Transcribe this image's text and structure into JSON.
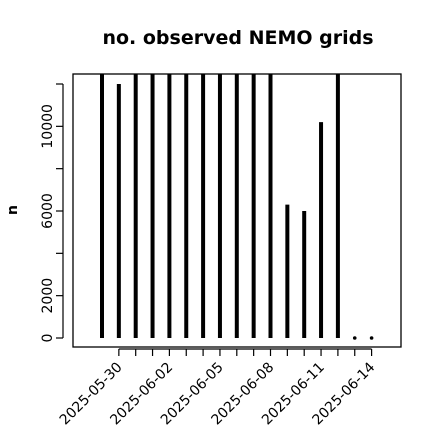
{
  "chart_data": {
    "type": "bar",
    "title": "no. observed NEMO grids",
    "ylabel": "n",
    "xlabel": "",
    "ylim": [
      0,
      12500
    ],
    "yticks": [
      0,
      2000,
      6000,
      10000
    ],
    "xticks": [
      "2025-05-30",
      "2025-06-02",
      "2025-06-05",
      "2025-06-08",
      "2025-06-11",
      "2025-06-14"
    ],
    "x": [
      "2025-05-29",
      "2025-05-30",
      "2025-05-31",
      "2025-06-01",
      "2025-06-02",
      "2025-06-03",
      "2025-06-04",
      "2025-06-05",
      "2025-06-06",
      "2025-06-07",
      "2025-06-08",
      "2025-06-09",
      "2025-06-10",
      "2025-06-11",
      "2025-06-12",
      "2025-06-13",
      "2025-06-14"
    ],
    "values": [
      12700,
      12000,
      12700,
      12700,
      12700,
      12700,
      12700,
      12700,
      12700,
      12700,
      12700,
      6300,
      6000,
      10200,
      12700,
      0,
      0
    ],
    "grid": false,
    "color": "#000000"
  }
}
